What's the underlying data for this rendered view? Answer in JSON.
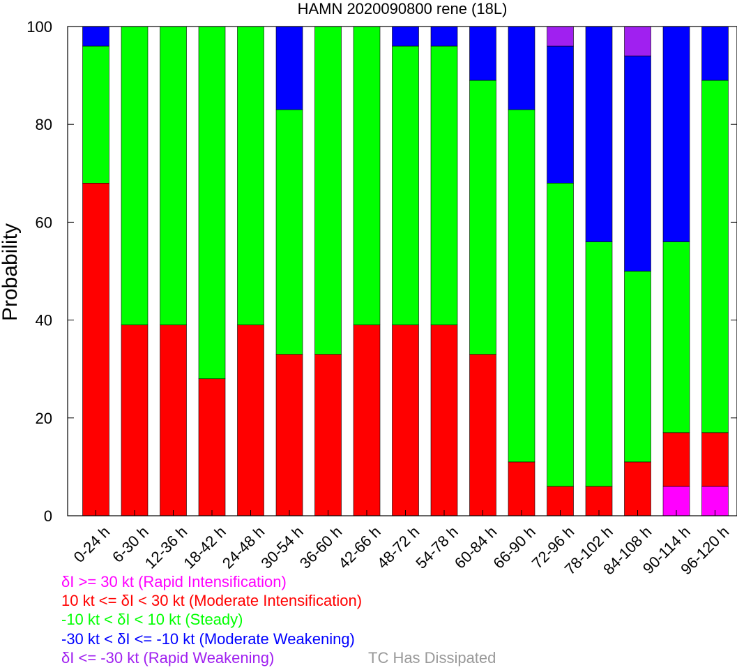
{
  "chart_data": {
    "type": "bar",
    "stacked": true,
    "title": "HAMN 2020090800 rene (18L)",
    "xlabel": "",
    "ylabel": "Probability",
    "ylim": [
      0,
      100
    ],
    "yticks": [
      0,
      20,
      40,
      60,
      80,
      100
    ],
    "grid": false,
    "categories": [
      "0-24 h",
      "6-30 h",
      "12-36 h",
      "18-42 h",
      "24-48 h",
      "30-54 h",
      "36-60 h",
      "42-66 h",
      "48-72 h",
      "54-78 h",
      "60-84 h",
      "66-90 h",
      "72-96 h",
      "78-102 h",
      "84-108 h",
      "90-114 h",
      "96-120 h"
    ],
    "series": [
      {
        "key": "ri",
        "color": "#ff00ff",
        "values": [
          0,
          0,
          0,
          0,
          0,
          0,
          0,
          0,
          0,
          0,
          0,
          0,
          0,
          0,
          0,
          6,
          6
        ]
      },
      {
        "key": "mi",
        "color": "#ff0000",
        "values": [
          68,
          39,
          39,
          28,
          39,
          33,
          33,
          39,
          39,
          39,
          33,
          11,
          6,
          6,
          11,
          11,
          11
        ]
      },
      {
        "key": "steady",
        "color": "#00ff00",
        "values": [
          28,
          61,
          61,
          72,
          61,
          50,
          67,
          61,
          57,
          57,
          56,
          72,
          62,
          50,
          39,
          39,
          72
        ]
      },
      {
        "key": "mw",
        "color": "#0000ff",
        "values": [
          4,
          0,
          0,
          0,
          0,
          17,
          0,
          0,
          4,
          4,
          11,
          17,
          28,
          44,
          44,
          44,
          11
        ]
      },
      {
        "key": "rw",
        "color": "#a020f0",
        "values": [
          0,
          0,
          0,
          0,
          0,
          0,
          0,
          0,
          0,
          0,
          0,
          0,
          4,
          0,
          6,
          0,
          0
        ]
      }
    ],
    "legend": {
      "placement": "bottom-left",
      "entries": [
        {
          "text": "δI >= 30 kt (Rapid Intensification)",
          "color": "#ff00ff"
        },
        {
          "text": "10 kt <= δI < 30 kt (Moderate Intensification)",
          "color": "#ff0000"
        },
        {
          "text": "-10 kt < δI < 10 kt (Steady)",
          "color": "#00ff00"
        },
        {
          "text": "-30 kt < δI <= -10 kt (Moderate Weakening)",
          "color": "#0000ff"
        },
        {
          "text": "δI <= -30 kt (Rapid Weakening)",
          "color": "#a020f0"
        }
      ],
      "dissipated": {
        "text": "TC Has Dissipated",
        "color": "#999999"
      }
    }
  }
}
